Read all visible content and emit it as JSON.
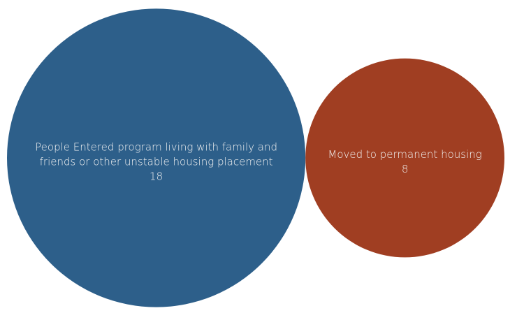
{
  "chart_data": {
    "type": "bubble",
    "categories": [
      "People Entered program living with family and friends or other unstable housing placement",
      "Moved to permanent housing"
    ],
    "values": [
      18,
      8
    ],
    "colors": [
      "#2d5f8a",
      "#a03e22"
    ]
  }
}
